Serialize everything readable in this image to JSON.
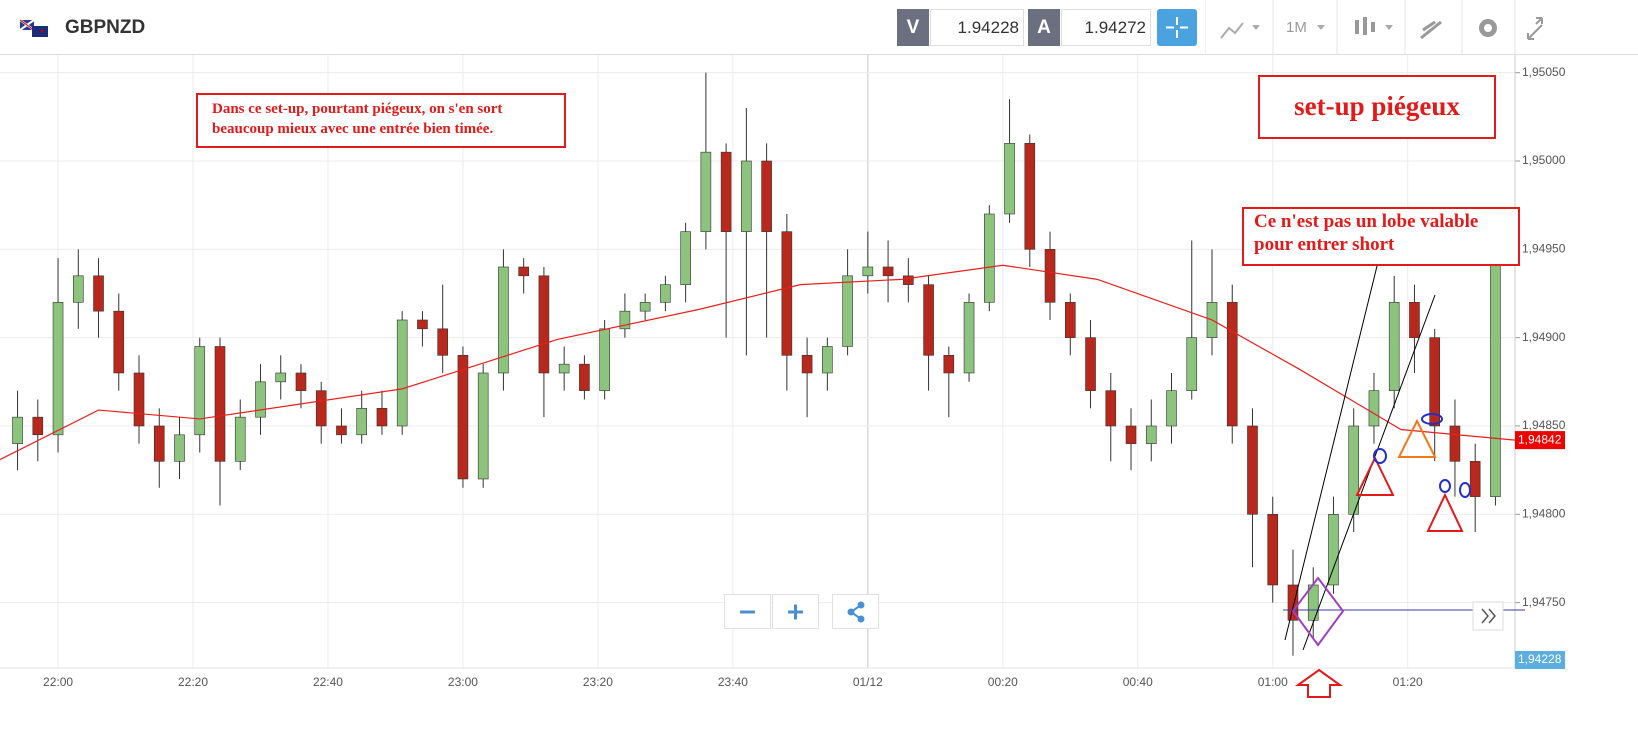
{
  "header": {
    "symbol": "GBPNZD",
    "sell_label": "V",
    "sell_price": 1.94228,
    "buy_label": "A",
    "buy_price": 1.94272,
    "timeframe": "1M"
  },
  "annotations": {
    "note": "Dans ce set-up, pourtant piégeux, on s'en sort beaucoup mieux avec une entrée bien timée.",
    "title": "set-up piégeux",
    "comment": "Ce n'est pas un lobe valable pour entrer short"
  },
  "chart_data": {
    "type": "candlestick",
    "up_color": "#8cc47e",
    "down_color": "#b8281c",
    "grid": true,
    "xlim": [
      -8.6,
      215.9
    ],
    "ylim": [
      1.94713,
      1.9506
    ],
    "xticks": [
      {
        "value": 0,
        "label": "22:00"
      },
      {
        "value": 20,
        "label": "22:20"
      },
      {
        "value": 40,
        "label": "22:40"
      },
      {
        "value": 60,
        "label": "23:00"
      },
      {
        "value": 80,
        "label": "23:20"
      },
      {
        "value": 100,
        "label": "23:40"
      },
      {
        "value": 120,
        "label": "01/12"
      },
      {
        "value": 140,
        "label": "00:20"
      },
      {
        "value": 160,
        "label": "00:40"
      },
      {
        "value": 180,
        "label": "01:00"
      },
      {
        "value": 200,
        "label": "01:20"
      }
    ],
    "yticks": [
      {
        "value": 1.9505,
        "label": "1,95050"
      },
      {
        "value": 1.95,
        "label": "1,95000"
      },
      {
        "value": 1.9495,
        "label": "1,94950"
      },
      {
        "value": 1.949,
        "label": "1,94900"
      },
      {
        "value": 1.9485,
        "label": "1,94850"
      },
      {
        "value": 1.948,
        "label": "1,94800"
      },
      {
        "value": 1.9475,
        "label": "1,94750"
      }
    ],
    "x": [
      -6,
      -3,
      0,
      3,
      6,
      9,
      12,
      15,
      18,
      21,
      24,
      27,
      30,
      33,
      36,
      39,
      42,
      45,
      48,
      51,
      54,
      57,
      60,
      63,
      66,
      69,
      72,
      75,
      78,
      81,
      84,
      87,
      90,
      93,
      96,
      99,
      102,
      105,
      108,
      111,
      114,
      117,
      120,
      123,
      126,
      129,
      132,
      135,
      138,
      141,
      144,
      147,
      150,
      153,
      156,
      159,
      162,
      165,
      168,
      171,
      174,
      177,
      180,
      183,
      186,
      189,
      192,
      195,
      198,
      201,
      204,
      207,
      210,
      213
    ],
    "ohlc": [
      [
        1.9484,
        1.9487,
        1.94825,
        1.94855
      ],
      [
        1.94855,
        1.94865,
        1.9483,
        1.94845
      ],
      [
        1.94845,
        1.94945,
        1.94835,
        1.9492
      ],
      [
        1.9492,
        1.9495,
        1.94905,
        1.94935
      ],
      [
        1.94935,
        1.94945,
        1.949,
        1.94915
      ],
      [
        1.94915,
        1.94925,
        1.9487,
        1.9488
      ],
      [
        1.9488,
        1.9489,
        1.9484,
        1.9485
      ],
      [
        1.9485,
        1.9486,
        1.94815,
        1.9483
      ],
      [
        1.9483,
        1.94855,
        1.9482,
        1.94845
      ],
      [
        1.94845,
        1.949,
        1.94835,
        1.94895
      ],
      [
        1.94895,
        1.949,
        1.94805,
        1.9483
      ],
      [
        1.9483,
        1.94865,
        1.94825,
        1.94855
      ],
      [
        1.94855,
        1.94885,
        1.94845,
        1.94875
      ],
      [
        1.94875,
        1.9489,
        1.94865,
        1.9488
      ],
      [
        1.9488,
        1.94885,
        1.9486,
        1.9487
      ],
      [
        1.9487,
        1.94875,
        1.9484,
        1.9485
      ],
      [
        1.9485,
        1.9486,
        1.9484,
        1.94845
      ],
      [
        1.94845,
        1.9487,
        1.9484,
        1.9486
      ],
      [
        1.9486,
        1.9487,
        1.94845,
        1.9485
      ],
      [
        1.9485,
        1.94915,
        1.94845,
        1.9491
      ],
      [
        1.9491,
        1.94915,
        1.94895,
        1.94905
      ],
      [
        1.94905,
        1.9493,
        1.9488,
        1.9489
      ],
      [
        1.9489,
        1.94895,
        1.94815,
        1.9482
      ],
      [
        1.9482,
        1.94885,
        1.94815,
        1.9488
      ],
      [
        1.9488,
        1.9495,
        1.9487,
        1.9494
      ],
      [
        1.9494,
        1.94945,
        1.94925,
        1.94935
      ],
      [
        1.94935,
        1.9494,
        1.94855,
        1.9488
      ],
      [
        1.9488,
        1.94895,
        1.9487,
        1.94885
      ],
      [
        1.94885,
        1.9489,
        1.94865,
        1.9487
      ],
      [
        1.9487,
        1.9491,
        1.94865,
        1.94905
      ],
      [
        1.94905,
        1.94925,
        1.949,
        1.94915
      ],
      [
        1.94915,
        1.94925,
        1.9491,
        1.9492
      ],
      [
        1.9492,
        1.94935,
        1.94915,
        1.9493
      ],
      [
        1.9493,
        1.94965,
        1.9492,
        1.9496
      ],
      [
        1.9496,
        1.9505,
        1.9495,
        1.95005
      ],
      [
        1.95005,
        1.9501,
        1.949,
        1.9496
      ],
      [
        1.9496,
        1.9503,
        1.9489,
        1.95
      ],
      [
        1.95,
        1.9501,
        1.949,
        1.9496
      ],
      [
        1.9496,
        1.9497,
        1.9487,
        1.9489
      ],
      [
        1.9489,
        1.949,
        1.94855,
        1.9488
      ],
      [
        1.9488,
        1.949,
        1.9487,
        1.94895
      ],
      [
        1.94895,
        1.9495,
        1.9489,
        1.94935
      ],
      [
        1.94935,
        1.9496,
        1.94925,
        1.9494
      ],
      [
        1.9494,
        1.94955,
        1.9492,
        1.94935
      ],
      [
        1.94935,
        1.94945,
        1.9492,
        1.9493
      ],
      [
        1.9493,
        1.94935,
        1.9487,
        1.9489
      ],
      [
        1.9489,
        1.94895,
        1.94855,
        1.9488
      ],
      [
        1.9488,
        1.94925,
        1.94875,
        1.9492
      ],
      [
        1.9492,
        1.94975,
        1.94915,
        1.9497
      ],
      [
        1.9497,
        1.95035,
        1.94965,
        1.9501
      ],
      [
        1.9501,
        1.95015,
        1.9494,
        1.9495
      ],
      [
        1.9495,
        1.9496,
        1.9491,
        1.9492
      ],
      [
        1.9492,
        1.94925,
        1.9489,
        1.949
      ],
      [
        1.949,
        1.9491,
        1.9486,
        1.9487
      ],
      [
        1.9487,
        1.9488,
        1.9483,
        1.9485
      ],
      [
        1.9485,
        1.9486,
        1.94825,
        1.9484
      ],
      [
        1.9484,
        1.94865,
        1.9483,
        1.9485
      ],
      [
        1.9485,
        1.9488,
        1.9484,
        1.9487
      ],
      [
        1.9487,
        1.94955,
        1.94865,
        1.949
      ],
      [
        1.949,
        1.9495,
        1.9489,
        1.9492
      ],
      [
        1.9492,
        1.9493,
        1.9484,
        1.9485
      ],
      [
        1.9485,
        1.9486,
        1.9477,
        1.948
      ],
      [
        1.948,
        1.9481,
        1.9475,
        1.9476
      ],
      [
        1.9476,
        1.9478,
        1.9472,
        1.9474
      ],
      [
        1.9474,
        1.9477,
        1.9473,
        1.9476
      ],
      [
        1.9476,
        1.9481,
        1.94755,
        1.948
      ],
      [
        1.948,
        1.9486,
        1.9479,
        1.9485
      ],
      [
        1.9485,
        1.9488,
        1.9484,
        1.9487
      ],
      [
        1.9487,
        1.94935,
        1.9486,
        1.9492
      ],
      [
        1.9492,
        1.9493,
        1.9488,
        1.949
      ],
      [
        1.949,
        1.94905,
        1.9483,
        1.9485
      ],
      [
        1.9485,
        1.94865,
        1.9481,
        1.9483
      ],
      [
        1.9483,
        1.9484,
        1.9479,
        1.9481
      ],
      [
        1.9481,
        1.94955,
        1.94805,
        1.94945
      ]
    ],
    "ma": {
      "color": "#e8201c",
      "x": [
        -8.6,
        6,
        21,
        51,
        74,
        95,
        110,
        125,
        140,
        154,
        171,
        184,
        199,
        215.9
      ],
      "values": [
        1.94831,
        1.94859,
        1.94854,
        1.94871,
        1.94899,
        1.94916,
        1.9493,
        1.94933,
        1.94941,
        1.94933,
        1.9491,
        1.94882,
        1.94848,
        1.94842
      ]
    },
    "price_tag": {
      "value": 1.94842,
      "label": "1,94842"
    },
    "bid_tag": "1,94228"
  }
}
